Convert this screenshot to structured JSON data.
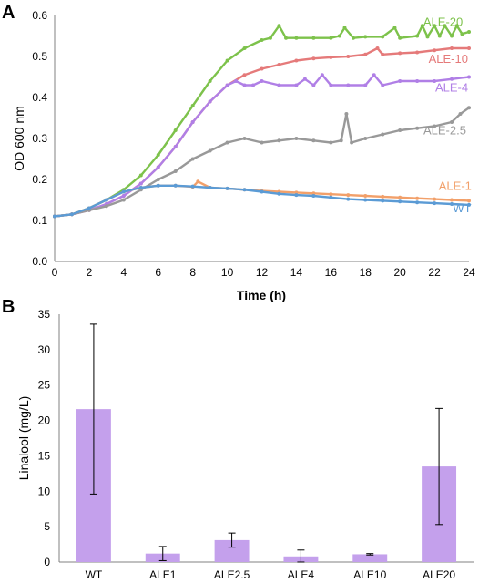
{
  "panels": [
    {
      "letter": "A"
    },
    {
      "letter": "B"
    }
  ],
  "chart_data": [
    {
      "type": "line",
      "xlabel": "Time (h)",
      "ylabel": "OD 600 nm",
      "xlim": [
        0,
        24
      ],
      "ylim": [
        0,
        0.6
      ],
      "xticks": [
        "0",
        "2",
        "4",
        "6",
        "8",
        "10",
        "12",
        "14",
        "16",
        "18",
        "20",
        "22",
        "24"
      ],
      "yticks": [
        "0.0",
        "0.1",
        "0.2",
        "0.3",
        "0.4",
        "0.5",
        "0.6"
      ],
      "grid": false,
      "series": [
        {
          "name": "ALE-20",
          "color": "#7dc24b",
          "x": [
            0,
            1,
            2,
            3,
            4,
            5,
            6,
            7,
            8,
            9,
            10,
            11,
            12,
            12.5,
            13,
            13.4,
            14,
            15,
            16,
            16.5,
            16.8,
            17.3,
            18,
            19,
            19.7,
            20,
            21,
            21.3,
            21.6,
            22,
            22.3,
            22.6,
            23,
            23.3,
            23.6,
            24
          ],
          "y": [
            0.11,
            0.115,
            0.13,
            0.15,
            0.175,
            0.21,
            0.26,
            0.32,
            0.38,
            0.44,
            0.49,
            0.52,
            0.54,
            0.545,
            0.575,
            0.545,
            0.545,
            0.545,
            0.545,
            0.55,
            0.57,
            0.545,
            0.548,
            0.548,
            0.57,
            0.545,
            0.55,
            0.575,
            0.548,
            0.575,
            0.55,
            0.575,
            0.55,
            0.575,
            0.555,
            0.56
          ]
        },
        {
          "name": "ALE-10",
          "color": "#e57a7a",
          "x": [
            0,
            1,
            2,
            3,
            4,
            5,
            6,
            7,
            8,
            9,
            10,
            11,
            12,
            13,
            14,
            15,
            16,
            17,
            18,
            18.7,
            19,
            20,
            21,
            22,
            23,
            24
          ],
          "y": [
            0.11,
            0.115,
            0.125,
            0.14,
            0.16,
            0.19,
            0.23,
            0.28,
            0.34,
            0.39,
            0.43,
            0.455,
            0.47,
            0.48,
            0.49,
            0.495,
            0.498,
            0.5,
            0.505,
            0.52,
            0.505,
            0.508,
            0.51,
            0.515,
            0.52,
            0.52
          ]
        },
        {
          "name": "ALE-4",
          "color": "#b07fe6",
          "x": [
            0,
            1,
            2,
            3,
            4,
            5,
            6,
            7,
            8,
            9,
            10,
            10.5,
            11,
            11.5,
            12,
            13,
            14,
            14.5,
            15,
            15.5,
            16,
            17,
            18,
            18.5,
            19,
            20,
            21,
            22,
            23,
            24
          ],
          "y": [
            0.11,
            0.115,
            0.125,
            0.14,
            0.16,
            0.19,
            0.23,
            0.28,
            0.34,
            0.39,
            0.43,
            0.44,
            0.43,
            0.43,
            0.44,
            0.43,
            0.43,
            0.445,
            0.43,
            0.455,
            0.43,
            0.43,
            0.43,
            0.455,
            0.43,
            0.44,
            0.44,
            0.44,
            0.445,
            0.45
          ]
        },
        {
          "name": "ALE-2.5",
          "color": "#999999",
          "x": [
            0,
            1,
            2,
            3,
            4,
            5,
            6,
            7,
            8,
            9,
            10,
            11,
            12,
            13,
            14,
            15,
            16,
            16.6,
            16.9,
            17.2,
            18,
            19,
            20,
            21,
            22,
            23,
            23.5,
            24
          ],
          "y": [
            0.11,
            0.115,
            0.125,
            0.135,
            0.15,
            0.175,
            0.2,
            0.22,
            0.25,
            0.27,
            0.29,
            0.3,
            0.29,
            0.295,
            0.3,
            0.295,
            0.29,
            0.295,
            0.36,
            0.29,
            0.3,
            0.31,
            0.32,
            0.325,
            0.33,
            0.34,
            0.36,
            0.375
          ]
        },
        {
          "name": "ALE-1",
          "color": "#f2a06a",
          "x": [
            0,
            1,
            2,
            3,
            4,
            5,
            6,
            7,
            8,
            8.3,
            9,
            10,
            11,
            12,
            13,
            14,
            15,
            16,
            17,
            18,
            19,
            20,
            21,
            22,
            23,
            24
          ],
          "y": [
            0.11,
            0.115,
            0.13,
            0.15,
            0.17,
            0.18,
            0.185,
            0.185,
            0.182,
            0.195,
            0.18,
            0.178,
            0.175,
            0.172,
            0.17,
            0.168,
            0.166,
            0.164,
            0.162,
            0.16,
            0.158,
            0.156,
            0.154,
            0.152,
            0.15,
            0.148
          ]
        },
        {
          "name": "WT",
          "color": "#5b9bd5",
          "x": [
            0,
            1,
            2,
            3,
            4,
            5,
            6,
            7,
            8,
            9,
            10,
            11,
            12,
            13,
            14,
            15,
            16,
            17,
            18,
            19,
            20,
            21,
            22,
            23,
            24
          ],
          "y": [
            0.11,
            0.115,
            0.13,
            0.15,
            0.17,
            0.18,
            0.185,
            0.185,
            0.183,
            0.18,
            0.178,
            0.175,
            0.17,
            0.165,
            0.162,
            0.16,
            0.156,
            0.152,
            0.15,
            0.148,
            0.146,
            0.144,
            0.142,
            0.14,
            0.138
          ]
        }
      ]
    },
    {
      "type": "bar",
      "ylabel": "Linalool (mg/L)",
      "categories": [
        "WT",
        "ALE1",
        "ALE2.5",
        "ALE4",
        "ALE10",
        "ALE20"
      ],
      "values": [
        21.6,
        1.2,
        3.1,
        0.8,
        1.1,
        13.5
      ],
      "errors": [
        12.0,
        1.0,
        1.0,
        0.9,
        0.1,
        8.2
      ],
      "ylim": [
        0,
        35
      ],
      "yticks": [
        "0",
        "5",
        "10",
        "15",
        "20",
        "25",
        "30",
        "35"
      ],
      "bar_color": "#c4a0ec",
      "grid": false
    }
  ]
}
